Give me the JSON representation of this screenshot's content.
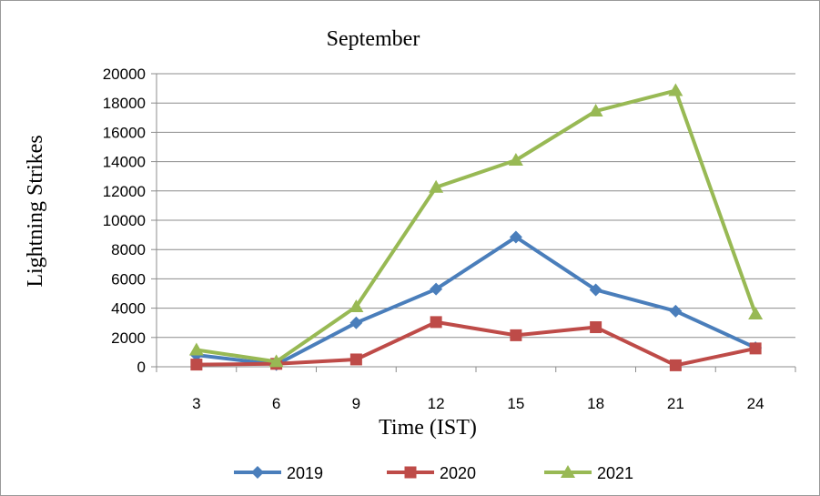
{
  "chart_data": {
    "type": "line",
    "title": "September",
    "xlabel": "Time (IST)",
    "ylabel": "Lightning Strikes",
    "categories": [
      "3",
      "6",
      "9",
      "12",
      "15",
      "18",
      "21",
      "24"
    ],
    "ylim": [
      0,
      20000
    ],
    "yticks": [
      "0",
      "2000",
      "4000",
      "6000",
      "8000",
      "10000",
      "12000",
      "14000",
      "16000",
      "18000",
      "20000"
    ],
    "grid": "horizontal",
    "legend": "bottom",
    "series": [
      {
        "name": "2019",
        "color": "#4a7ebb",
        "marker": "diamond",
        "values": [
          800,
          150,
          3000,
          5300,
          8850,
          5250,
          3800,
          1300
        ]
      },
      {
        "name": "2020",
        "color": "#be4b48",
        "marker": "square",
        "values": [
          150,
          200,
          500,
          3050,
          2150,
          2700,
          100,
          1250
        ]
      },
      {
        "name": "2021",
        "color": "#98b954",
        "marker": "triangle",
        "values": [
          1150,
          350,
          4100,
          12250,
          14100,
          17450,
          18850,
          3600
        ]
      }
    ]
  }
}
